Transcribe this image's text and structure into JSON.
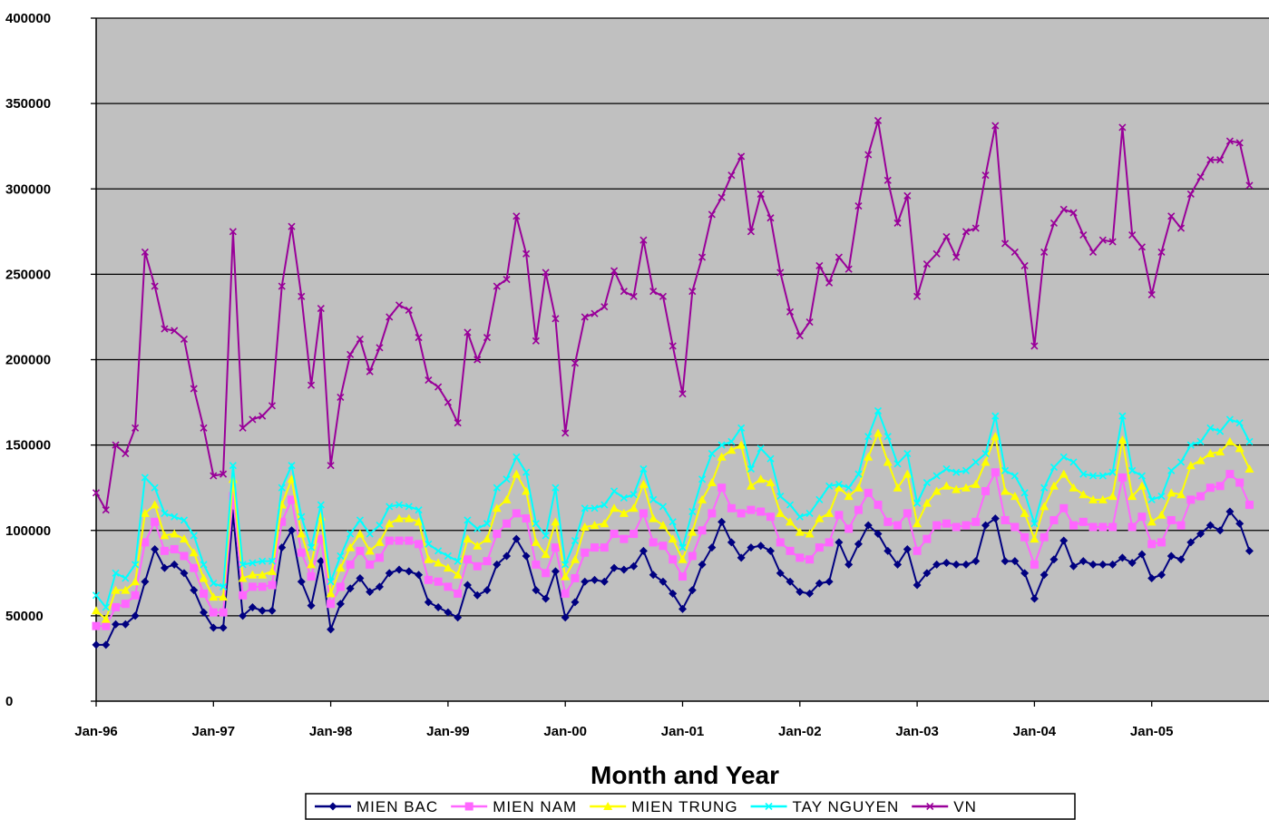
{
  "chart_data": {
    "type": "line",
    "title": "",
    "xlabel": "Month and Year",
    "ylabel": "",
    "ylim": [
      0,
      400000
    ],
    "y_ticks": [
      0,
      50000,
      100000,
      150000,
      200000,
      250000,
      300000,
      350000,
      400000
    ],
    "y_tick_labels": [
      "0",
      "50000",
      "100000",
      "150000",
      "200000",
      "250000",
      "300000",
      "350000",
      "400000"
    ],
    "x_tick_labels": [
      "Jan-96",
      "Jan-97",
      "Jan-98",
      "Jan-99",
      "Jan-00",
      "Jan-01",
      "Jan-02",
      "Jan-03",
      "Jan-04",
      "Jan-05"
    ],
    "x_start": "Jan-96",
    "x_end": "Dec-05",
    "grid": "horizontal",
    "plot_background": "#c0c0c0",
    "legend_position": "bottom",
    "series": [
      {
        "name": "MIEN BAC",
        "color": "#000080",
        "marker": "diamond",
        "values": [
          33000,
          33000,
          45000,
          45000,
          50000,
          70000,
          89000,
          78000,
          80000,
          75000,
          65000,
          52000,
          43000,
          43000,
          110000,
          50000,
          55000,
          53000,
          53000,
          90000,
          100000,
          70000,
          56000,
          82000,
          42000,
          57000,
          66000,
          72000,
          64000,
          67000,
          75000,
          77000,
          76000,
          74000,
          58000,
          55000,
          52000,
          49000,
          68000,
          62000,
          65000,
          80000,
          85000,
          95000,
          85000,
          65000,
          60000,
          76000,
          49000,
          58000,
          70000,
          71000,
          70000,
          78000,
          77000,
          79000,
          88000,
          74000,
          70000,
          63000,
          54000,
          65000,
          80000,
          90000,
          105000,
          93000,
          84000,
          90000,
          91000,
          88000,
          75000,
          70000,
          64000,
          63000,
          69000,
          70000,
          93000,
          80000,
          92000,
          103000,
          98000,
          88000,
          80000,
          89000,
          68000,
          75000,
          80000,
          81000,
          80000,
          80000,
          82000,
          103000,
          107000,
          82000,
          82000,
          75000,
          60000,
          74000,
          83000,
          94000,
          79000,
          82000,
          80000,
          80000,
          80000,
          84000,
          81000,
          86000,
          72000,
          74000,
          85000,
          83000,
          93000,
          98000,
          103000,
          100000,
          111000,
          104000,
          88000
        ]
      },
      {
        "name": "MIEN NAM",
        "color": "#ff66ff",
        "marker": "square",
        "values": [
          44000,
          44000,
          55000,
          57000,
          62000,
          93000,
          105000,
          88000,
          89000,
          85000,
          78000,
          63000,
          52000,
          52000,
          120000,
          62000,
          67000,
          67000,
          68000,
          105000,
          118000,
          87000,
          73000,
          95000,
          57000,
          67000,
          80000,
          88000,
          80000,
          84000,
          94000,
          94000,
          94000,
          92000,
          71000,
          70000,
          67000,
          63000,
          83000,
          79000,
          82000,
          98000,
          104000,
          110000,
          107000,
          80000,
          75000,
          90000,
          63000,
          72000,
          87000,
          90000,
          90000,
          98000,
          95000,
          98000,
          110000,
          93000,
          91000,
          83000,
          73000,
          85000,
          100000,
          110000,
          125000,
          113000,
          110000,
          112000,
          111000,
          108000,
          93000,
          88000,
          84000,
          83000,
          90000,
          93000,
          109000,
          101000,
          112000,
          122000,
          115000,
          105000,
          103000,
          110000,
          88000,
          95000,
          103000,
          104000,
          102000,
          103000,
          105000,
          123000,
          134000,
          106000,
          102000,
          96000,
          80000,
          96000,
          106000,
          113000,
          103000,
          105000,
          102000,
          102000,
          102000,
          131000,
          102000,
          108000,
          92000,
          93000,
          106000,
          103000,
          118000,
          120000,
          125000,
          126000,
          133000,
          128000,
          115000
        ]
      },
      {
        "name": "MIEN TRUNG",
        "color": "#ffff00",
        "marker": "triangle",
        "values": [
          53000,
          48000,
          65000,
          65000,
          70000,
          110000,
          115000,
          97000,
          98000,
          95000,
          87000,
          72000,
          61000,
          61000,
          130000,
          72000,
          74000,
          74000,
          76000,
          115000,
          130000,
          98000,
          80000,
          108000,
          63000,
          78000,
          90000,
          98000,
          88000,
          93000,
          104000,
          107000,
          107000,
          105000,
          83000,
          81000,
          78000,
          74000,
          95000,
          91000,
          95000,
          113000,
          118000,
          133000,
          123000,
          93000,
          86000,
          105000,
          73000,
          83000,
          102000,
          103000,
          104000,
          113000,
          110000,
          113000,
          127000,
          107000,
          103000,
          95000,
          83000,
          99000,
          118000,
          128000,
          143000,
          147000,
          150000,
          126000,
          130000,
          128000,
          110000,
          105000,
          99000,
          98000,
          107000,
          110000,
          125000,
          120000,
          125000,
          143000,
          157000,
          140000,
          125000,
          133000,
          104000,
          116000,
          123000,
          126000,
          124000,
          125000,
          127000,
          140000,
          155000,
          123000,
          120000,
          110000,
          95000,
          114000,
          126000,
          133000,
          125000,
          121000,
          118000,
          118000,
          120000,
          153000,
          120000,
          126000,
          105000,
          109000,
          122000,
          121000,
          138000,
          141000,
          145000,
          146000,
          152000,
          148000,
          136000
        ]
      },
      {
        "name": "TAY NGUYEN",
        "color": "#00ffff",
        "marker": "x",
        "values": [
          62000,
          55000,
          75000,
          72000,
          80000,
          131000,
          125000,
          110000,
          108000,
          106000,
          97000,
          80000,
          69000,
          67000,
          138000,
          80000,
          81000,
          82000,
          82000,
          125000,
          138000,
          108000,
          90000,
          115000,
          70000,
          85000,
          98000,
          106000,
          98000,
          103000,
          114000,
          115000,
          114000,
          112000,
          92000,
          88000,
          85000,
          82000,
          106000,
          101000,
          104000,
          125000,
          130000,
          143000,
          134000,
          104000,
          97000,
          125000,
          80000,
          94000,
          113000,
          113000,
          115000,
          123000,
          119000,
          121000,
          136000,
          118000,
          114000,
          105000,
          90000,
          111000,
          130000,
          145000,
          150000,
          152000,
          160000,
          136000,
          148000,
          142000,
          120000,
          115000,
          108000,
          110000,
          118000,
          126000,
          127000,
          125000,
          133000,
          155000,
          170000,
          155000,
          139000,
          145000,
          116000,
          128000,
          132000,
          136000,
          134000,
          135000,
          140000,
          145000,
          167000,
          135000,
          132000,
          122000,
          104000,
          125000,
          137000,
          143000,
          140000,
          133000,
          132000,
          132000,
          134000,
          167000,
          135000,
          132000,
          118000,
          120000,
          135000,
          140000,
          150000,
          152000,
          160000,
          158000,
          165000,
          163000,
          152000
        ]
      },
      {
        "name": "VN",
        "color": "#990099",
        "marker": "x",
        "values": [
          122000,
          112000,
          150000,
          145000,
          160000,
          263000,
          243000,
          218000,
          217000,
          212000,
          183000,
          160000,
          132000,
          133000,
          275000,
          160000,
          165000,
          167000,
          173000,
          243000,
          278000,
          237000,
          185000,
          230000,
          138000,
          178000,
          203000,
          212000,
          193000,
          207000,
          225000,
          232000,
          229000,
          213000,
          188000,
          184000,
          175000,
          163000,
          216000,
          200000,
          213000,
          243000,
          247000,
          284000,
          262000,
          211000,
          251000,
          224000,
          157000,
          198000,
          225000,
          227000,
          231000,
          252000,
          240000,
          237000,
          270000,
          240000,
          237000,
          208000,
          180000,
          240000,
          260000,
          285000,
          295000,
          308000,
          319000,
          275000,
          297000,
          283000,
          251000,
          228000,
          214000,
          222000,
          255000,
          245000,
          260000,
          253000,
          290000,
          320000,
          340000,
          305000,
          280000,
          296000,
          237000,
          256000,
          262000,
          272000,
          260000,
          275000,
          277000,
          308000,
          337000,
          268000,
          263000,
          255000,
          208000,
          263000,
          280000,
          288000,
          286000,
          273000,
          263000,
          270000,
          269000,
          336000,
          273000,
          266000,
          238000,
          263000,
          284000,
          277000,
          297000,
          307000,
          317000,
          317000,
          328000,
          327000,
          302000
        ]
      }
    ]
  }
}
